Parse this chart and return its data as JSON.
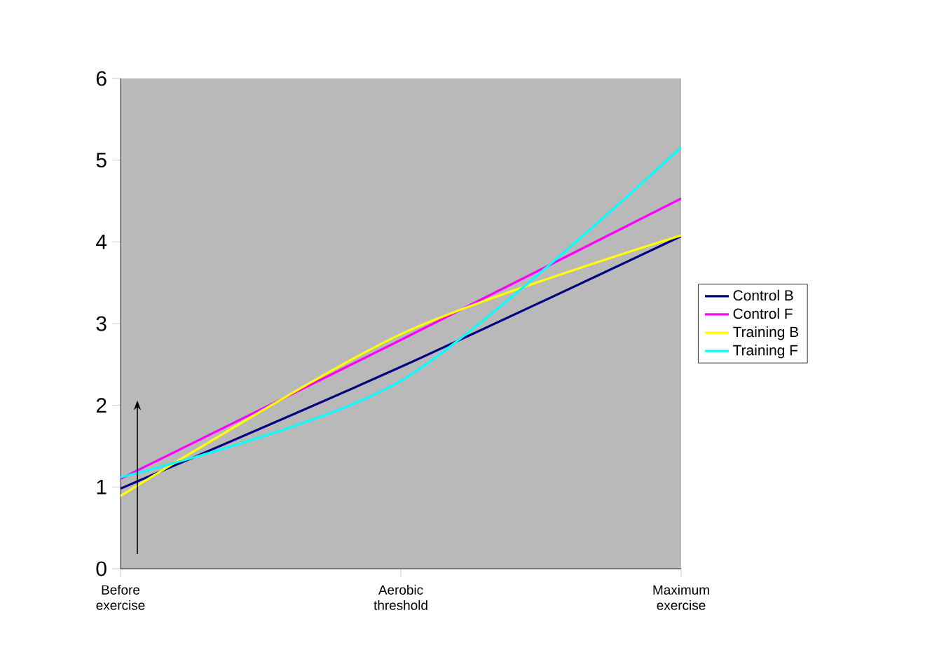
{
  "chart_data": {
    "type": "line",
    "categories": [
      "Before exercise",
      "Aerobic threshold",
      "Maximum exercise"
    ],
    "series": [
      {
        "name": "Control B",
        "color": "#000080",
        "values": [
          0.98,
          2.47,
          4.07
        ]
      },
      {
        "name": "Control F",
        "color": "#ff00ff",
        "values": [
          1.1,
          2.8,
          4.53
        ]
      },
      {
        "name": "Training B",
        "color": "#ffff00",
        "values": [
          0.89,
          2.87,
          4.08
        ]
      },
      {
        "name": "Training F",
        "color": "#00ffff",
        "values": [
          1.12,
          2.3,
          5.16
        ]
      }
    ],
    "ylim": [
      0,
      6
    ],
    "yticks": [
      0,
      1,
      2,
      3,
      4,
      5,
      6
    ],
    "legend": "right",
    "grid": false
  }
}
